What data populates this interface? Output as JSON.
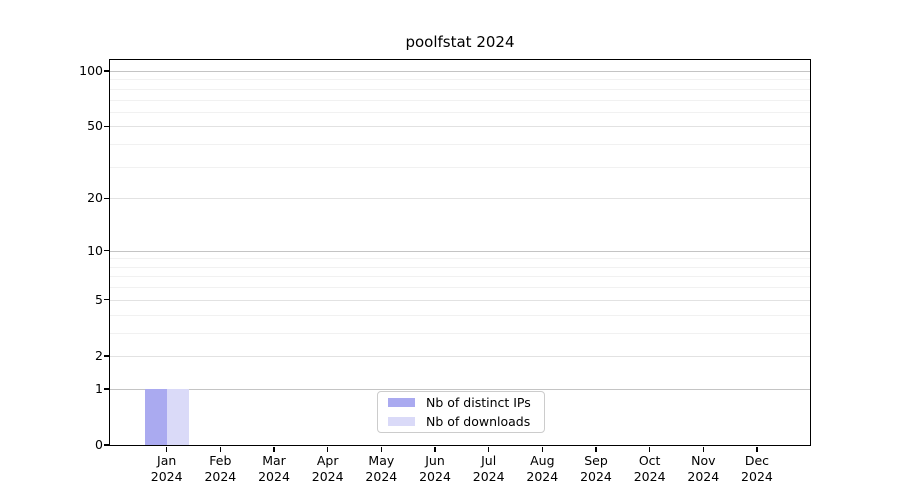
{
  "chart_data": {
    "type": "bar",
    "title": "poolfstat 2024",
    "xlabel": "",
    "ylabel": "",
    "categories": [
      "Jan",
      "Feb",
      "Mar",
      "Apr",
      "May",
      "Jun",
      "Jul",
      "Aug",
      "Sep",
      "Oct",
      "Nov",
      "Dec"
    ],
    "year": "2024",
    "series": [
      {
        "name": "Nb of distinct IPs",
        "color": "#aaaaf0",
        "values": [
          1,
          0,
          0,
          0,
          0,
          0,
          0,
          0,
          0,
          0,
          0,
          0
        ]
      },
      {
        "name": "Nb of downloads",
        "color": "#dadaf8",
        "values": [
          1,
          0,
          0,
          0,
          0,
          0,
          0,
          0,
          0,
          0,
          0,
          0
        ]
      }
    ],
    "y_scale": "log10(1+y)",
    "ylim": [
      0,
      113.6
    ],
    "y_major_ticks": [
      0,
      1,
      2,
      5,
      10,
      20,
      50,
      100
    ],
    "y_decade_gridlines": [
      1,
      10,
      100
    ],
    "y_mid_gridlines": [
      2,
      5,
      20,
      50
    ],
    "y_minor_gridlines": [
      3,
      4,
      6,
      7,
      8,
      9,
      30,
      40,
      60,
      70,
      80,
      90
    ],
    "grid": true,
    "legend_position": "lower center"
  }
}
